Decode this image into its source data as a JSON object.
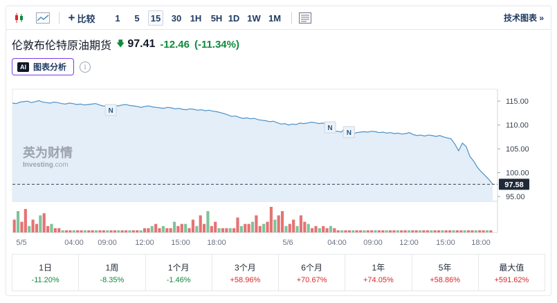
{
  "toolbar": {
    "compare_label": "比较",
    "intervals": [
      "1",
      "5",
      "15",
      "30",
      "1H",
      "5H",
      "1D",
      "1W",
      "1M"
    ],
    "active_interval": "15",
    "tech_chart_label": "技术图表 »"
  },
  "instrument": {
    "name": "伦敦布伦特原油期货",
    "price": "97.41",
    "change": "-12.46",
    "change_pct": "(-11.34%)"
  },
  "ai": {
    "badge": "AI",
    "label": "图表分析"
  },
  "colors": {
    "down": "#0f8a3c",
    "up": "#dc2626",
    "line": "#4a90c8",
    "area": "#e3eef8"
  },
  "chart_data": {
    "type": "area",
    "y_ticks": [
      "115.00",
      "110.00",
      "105.00",
      "100.00",
      "95.00"
    ],
    "ylim": [
      94,
      117.5
    ],
    "x_tick_labels": [
      "5/5",
      "04:00",
      "09:00",
      "12:00",
      "15:00",
      "18:00",
      "5/6",
      "04:00",
      "09:00",
      "12:00",
      "15:00",
      "18:00"
    ],
    "current_price_label": "97.58",
    "current_price": 97.58,
    "news_markers": [
      "N",
      "N",
      "N"
    ],
    "watermark": {
      "brand": "英为财情",
      "sub_a": "Investing",
      "sub_b": ".com"
    },
    "series": [
      {
        "values": [
          114.6,
          114.5,
          114.8,
          114.9,
          115.0,
          114.7,
          114.9,
          115.1,
          114.8,
          114.7,
          114.6,
          114.8,
          114.7,
          114.5,
          114.4,
          114.6,
          114.5,
          114.3,
          114.4,
          114.2,
          114.3,
          114.4,
          114.5,
          114.2,
          114.0,
          113.9,
          114.2,
          114.1,
          114.0,
          114.2,
          114.3,
          114.1,
          114.0,
          113.9,
          113.7,
          113.9,
          114.0,
          113.8,
          113.7,
          113.6,
          113.5,
          113.7,
          113.6,
          113.4,
          113.5,
          113.3,
          113.2,
          113.4,
          113.3,
          113.1,
          113.2,
          113.0,
          113.1,
          112.9,
          112.8,
          112.6,
          112.4,
          112.1,
          111.8,
          111.9,
          111.6,
          111.4,
          111.5,
          111.3,
          111.4,
          111.1,
          111.0,
          110.9,
          110.7,
          110.8,
          110.5,
          110.2,
          110.3,
          110.0,
          110.2,
          110.1,
          110.4,
          110.3,
          110.4,
          110.6,
          110.5,
          110.3,
          110.4,
          110.2,
          109.0,
          108.6,
          108.7,
          108.5,
          109.4,
          108.6,
          108.1,
          108.4,
          108.5,
          108.6,
          108.5,
          108.7,
          108.6,
          108.4,
          108.5,
          108.3,
          108.4,
          108.2,
          108.3,
          108.1,
          108.2,
          108.4,
          108.0,
          107.8,
          107.9,
          107.7,
          107.9,
          107.8,
          107.6,
          107.8,
          107.5,
          107.3,
          107.1,
          106.0,
          104.6,
          106.2,
          105.5,
          103.4,
          102.4,
          101.1,
          100.2,
          99.4,
          98.6,
          97.6
        ]
      }
    ],
    "volume": [
      6,
      10,
      5,
      11,
      3,
      6,
      4,
      8,
      9,
      3,
      4,
      2,
      2,
      1,
      1,
      1,
      1,
      1,
      1,
      1,
      1,
      1,
      1,
      1,
      1,
      1,
      1,
      1,
      1,
      1,
      1,
      1,
      1,
      1,
      1,
      2,
      2,
      3,
      4,
      2,
      3,
      2,
      2,
      5,
      3,
      4,
      4,
      2,
      6,
      3,
      8,
      4,
      10,
      3,
      5,
      2,
      2,
      2,
      2,
      2,
      7,
      3,
      4,
      4,
      5,
      8,
      3,
      4,
      5,
      12,
      6,
      8,
      10,
      3,
      4,
      6,
      3,
      8,
      5,
      4,
      2,
      3,
      2,
      3,
      2,
      3,
      2,
      1,
      1,
      1,
      1,
      1,
      1,
      1,
      1,
      1,
      1,
      1,
      1,
      1,
      1,
      1,
      1,
      1,
      1,
      1,
      1,
      1,
      1,
      1,
      1,
      1,
      1,
      1,
      1,
      1,
      1,
      1,
      1,
      1,
      1,
      1,
      1,
      1,
      1,
      1,
      1,
      1,
      1
    ],
    "volume_colors": "mixed-red-green"
  },
  "periods": [
    {
      "label": "1日",
      "value": "-11.20%",
      "dir": "neg"
    },
    {
      "label": "1周",
      "value": "-8.35%",
      "dir": "neg"
    },
    {
      "label": "1个月",
      "value": "-1.46%",
      "dir": "neg"
    },
    {
      "label": "3个月",
      "value": "+58.96%",
      "dir": "pos"
    },
    {
      "label": "6个月",
      "value": "+70.67%",
      "dir": "pos"
    },
    {
      "label": "1年",
      "value": "+74.05%",
      "dir": "pos"
    },
    {
      "label": "5年",
      "value": "+58.86%",
      "dir": "pos"
    },
    {
      "label": "最大值",
      "value": "+591.62%",
      "dir": "pos"
    }
  ]
}
